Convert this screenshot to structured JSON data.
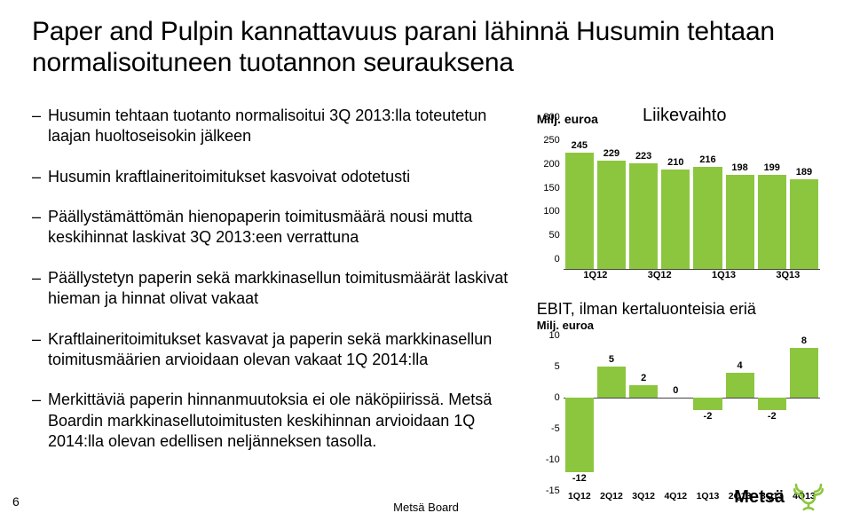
{
  "title": "Paper and Pulpin kannattavuus parani lähinnä Husumin tehtaan normalisoituneen tuotannon seurauksena",
  "bullets": [
    "Husumin tehtaan tuotanto normalisoitui 3Q 2013:lla toteutetun laajan huoltoseisokin jälkeen",
    "Husumin kraftlaineritoimitukset kasvoivat odotetusti",
    "Päällystämättömän hienopaperin toimitusmäärä nousi mutta keskihinnat laskivat 3Q 2013:een verrattuna",
    "Päällystetyn paperin sekä markkinasellun toimitusmäärät laskivat hieman ja hinnat olivat vakaat",
    "Kraftlaineritoimitukset kasvavat ja paperin sekä markkinasellun toimitusmäärien arvioidaan olevan vakaat 1Q 2014:lla",
    "Merkittäviä paperin hinnanmuutoksia ei ole näköpiirissä. Metsä Boardin markkinasellutoimitusten keskihinnan arvioidaan 1Q 2014:lla olevan edellisen neljänneksen tasolla."
  ],
  "chart1": {
    "axis_label": "Milj. euroa",
    "title": "Liikevaihto",
    "ylim": [
      0,
      300
    ],
    "ytick_step": 50,
    "x_labels": [
      "1Q12",
      "3Q12",
      "1Q13",
      "3Q13"
    ],
    "x_label_span": 2,
    "values": [
      245,
      229,
      223,
      210,
      216,
      198,
      199,
      189
    ],
    "bar_color": "#8cc63f",
    "value_label_fontsize": 11
  },
  "chart2": {
    "title": "EBIT, ilman kertaluonteisia eriä",
    "axis_label": "Milj. euroa",
    "ylim": [
      -15,
      10
    ],
    "ytick_step": 5,
    "x_labels": [
      "1Q12",
      "2Q12",
      "3Q12",
      "4Q12",
      "1Q13",
      "2Q13",
      "3Q13",
      "4Q13"
    ],
    "values": [
      -12,
      5,
      2,
      0,
      -2,
      4,
      -2,
      8
    ],
    "bar_color": "#8cc63f"
  },
  "footer": {
    "page_number": "6",
    "center_text": "Metsä Board",
    "logo_text": "Metsä",
    "logo_color": "#8cc63f"
  }
}
